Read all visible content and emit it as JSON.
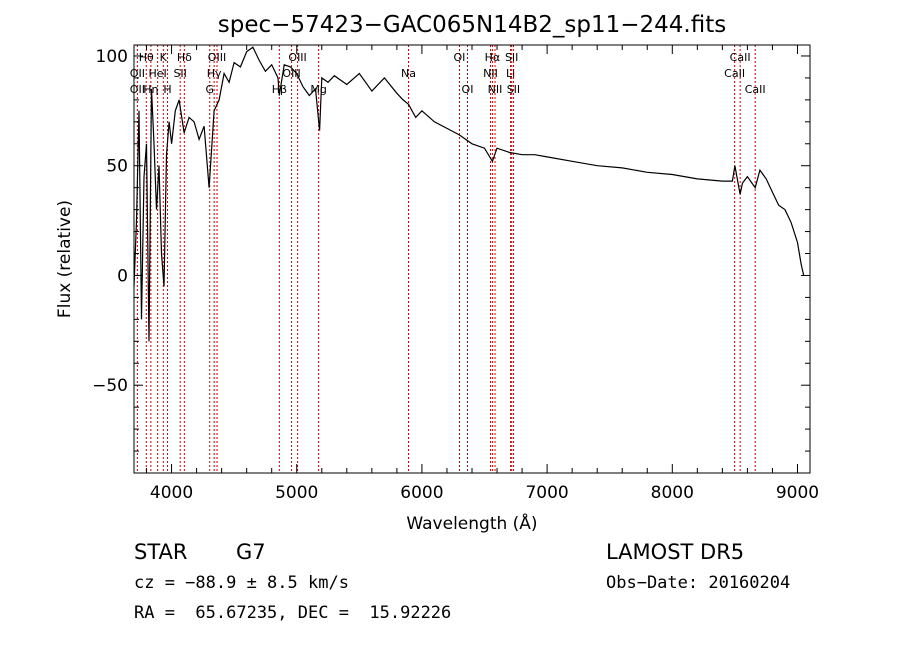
{
  "chart_data": {
    "type": "line",
    "title": "spec−57423−GAC065N14B2_sp11−244.fits",
    "xlabel": "Wavelength (Å)",
    "ylabel": "Flux (relative)",
    "xlim": [
      3700,
      9100
    ],
    "ylim": [
      -90,
      105
    ],
    "x_ticks": [
      4000,
      5000,
      6000,
      7000,
      8000,
      9000
    ],
    "y_ticks": [
      -50,
      0,
      50,
      100
    ],
    "x_tick_labels": [
      "4000",
      "5000",
      "6000",
      "7000",
      "8000",
      "9000"
    ],
    "y_tick_labels": [
      "−50",
      "0",
      "50",
      "100"
    ],
    "grid": false,
    "series": [
      {
        "color": "#000000",
        "x": [
          3700,
          3720,
          3740,
          3760,
          3780,
          3800,
          3820,
          3840,
          3860,
          3880,
          3900,
          3920,
          3940,
          3960,
          3980,
          4000,
          4030,
          4060,
          4100,
          4140,
          4180,
          4220,
          4260,
          4300,
          4340,
          4380,
          4420,
          4460,
          4500,
          4550,
          4600,
          4650,
          4700,
          4750,
          4800,
          4850,
          4861,
          4900,
          4950,
          5000,
          5050,
          5100,
          5150,
          5183,
          5200,
          5250,
          5300,
          5400,
          5500,
          5600,
          5700,
          5800,
          5850,
          5893,
          5950,
          6000,
          6100,
          6200,
          6300,
          6400,
          6500,
          6563,
          6600,
          6700,
          6800,
          6900,
          7000,
          7200,
          7400,
          7600,
          7800,
          8000,
          8200,
          8400,
          8480,
          8500,
          8542,
          8560,
          8600,
          8662,
          8700,
          8750,
          8800,
          8850,
          8900,
          8950,
          9000,
          9030,
          9050
        ],
        "values": [
          -5,
          25,
          75,
          -20,
          45,
          60,
          -30,
          85,
          60,
          30,
          50,
          10,
          -5,
          55,
          70,
          60,
          75,
          80,
          65,
          72,
          70,
          62,
          68,
          40,
          75,
          80,
          92,
          88,
          97,
          95,
          102,
          104,
          98,
          93,
          96,
          90,
          82,
          96,
          95,
          92,
          86,
          82,
          85,
          66,
          90,
          88,
          91,
          87,
          92,
          84,
          90,
          83,
          80,
          78,
          72,
          75,
          70,
          67,
          64,
          60,
          58,
          52,
          58,
          56,
          55,
          55,
          54,
          52,
          50,
          49,
          47,
          46,
          44,
          43,
          43,
          50,
          37,
          42,
          45,
          40,
          48,
          44,
          38,
          32,
          30,
          24,
          15,
          5,
          0
        ]
      }
    ],
    "lines": [
      {
        "label": "Hθ",
        "x": 3798,
        "row": 0
      },
      {
        "label": "OII",
        "x": 3727,
        "row": 1
      },
      {
        "label": "OII",
        "x": 3727,
        "row": 2
      },
      {
        "label": "K",
        "x": 3934,
        "row": 0
      },
      {
        "label": "HeI",
        "x": 3889,
        "row": 1
      },
      {
        "label": "Hη",
        "x": 3835,
        "row": 2
      },
      {
        "label": "H",
        "x": 3968,
        "row": 2
      },
      {
        "label": "SII",
        "x": 4069,
        "row": 1
      },
      {
        "label": "Hδ",
        "x": 4102,
        "row": 0
      },
      {
        "label": "OIII",
        "x": 4363,
        "row": 0
      },
      {
        "label": "Hγ",
        "x": 4340,
        "row": 1
      },
      {
        "label": "G",
        "x": 4305,
        "row": 2
      },
      {
        "label": "Hβ",
        "x": 4861,
        "row": 2
      },
      {
        "label": "OIII",
        "x": 5007,
        "row": 0
      },
      {
        "label": "OIII",
        "x": 4959,
        "row": 1
      },
      {
        "label": "Mg",
        "x": 5175,
        "row": 2
      },
      {
        "label": "Na",
        "x": 5893,
        "row": 1
      },
      {
        "label": "OI",
        "x": 6300,
        "row": 0
      },
      {
        "label": "OI",
        "x": 6364,
        "row": 2
      },
      {
        "label": "Hα",
        "x": 6563,
        "row": 0
      },
      {
        "label": "NII",
        "x": 6548,
        "row": 1
      },
      {
        "label": "NII",
        "x": 6584,
        "row": 2
      },
      {
        "label": "SII",
        "x": 6717,
        "row": 0
      },
      {
        "label": "Li",
        "x": 6708,
        "row": 1
      },
      {
        "label": "SII",
        "x": 6731,
        "row": 2
      },
      {
        "label": "CaII",
        "x": 8542,
        "row": 0
      },
      {
        "label": "CaII",
        "x": 8498,
        "row": 1
      },
      {
        "label": "CaII",
        "x": 8662,
        "row": 2
      }
    ]
  },
  "footer": {
    "object_class": "STAR",
    "subclass": "G7",
    "release": "LAMOST DR5",
    "cz": "cz = −88.9 ± 8.5 km/s",
    "obs_date": "Obs−Date: 20160204",
    "coords": "RA =  65.67235, DEC =  15.92226"
  }
}
